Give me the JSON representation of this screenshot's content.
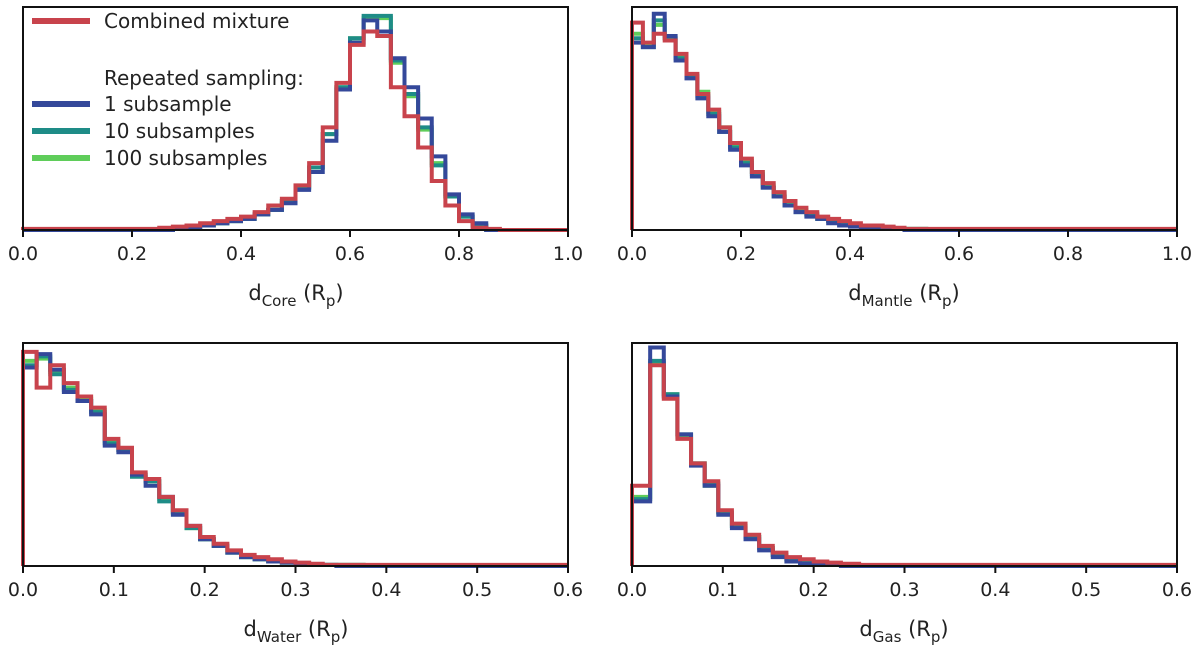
{
  "colors": {
    "combined": "#c8434c",
    "sub1": "#34489a",
    "sub10": "#1e8c87",
    "sub100": "#5fcd5a",
    "axis": "#111111"
  },
  "legend": {
    "items": [
      {
        "label": "Combined mixture",
        "color_key": "combined"
      },
      {
        "label": "Repeated sampling:",
        "color_key": null
      },
      {
        "label": "1 subsample",
        "color_key": "sub1"
      },
      {
        "label": "10 subsamples",
        "color_key": "sub10"
      },
      {
        "label": "100 subsamples",
        "color_key": "sub100"
      }
    ]
  },
  "chart_data": [
    {
      "type": "histogram",
      "panel": "core",
      "xlabel": {
        "main": "d",
        "sub": "Core",
        "unit": " (R",
        "unit_sub": "p",
        "close": ")"
      },
      "xlim": [
        0,
        1.0
      ],
      "xticks": [
        "0.0",
        "0.2",
        "0.4",
        "0.6",
        "0.8",
        "1.0"
      ],
      "xtick_values": [
        0,
        0.2,
        0.4,
        0.6,
        0.8,
        1.0
      ],
      "ylim": [
        0,
        100
      ],
      "yticks_visible": false,
      "bin_edges": [
        0,
        0.025,
        0.05,
        0.075,
        0.1,
        0.125,
        0.15,
        0.175,
        0.2,
        0.225,
        0.25,
        0.275,
        0.3,
        0.325,
        0.35,
        0.375,
        0.4,
        0.425,
        0.45,
        0.475,
        0.5,
        0.525,
        0.55,
        0.575,
        0.6,
        0.625,
        0.65,
        0.675,
        0.7,
        0.725,
        0.75,
        0.775,
        0.8,
        0.825,
        0.85,
        0.875,
        0.9,
        0.925,
        0.95,
        0.975,
        1.0
      ],
      "series": [
        {
          "name": "100 subsamples",
          "color_key": "sub100",
          "values": [
            0,
            0,
            0,
            0,
            0,
            0,
            0,
            0,
            0,
            0,
            0,
            0.5,
            1,
            2,
            3,
            4,
            5,
            7,
            9,
            13,
            19,
            28,
            43,
            64,
            86,
            95,
            95,
            75,
            60,
            45,
            30,
            15,
            6,
            2,
            0,
            0,
            0,
            0,
            0,
            0
          ]
        },
        {
          "name": "10 subsamples",
          "color_key": "sub10",
          "values": [
            0,
            0,
            0,
            0,
            0,
            0,
            0,
            0,
            0,
            0,
            0,
            0.5,
            1,
            2,
            3,
            4,
            5,
            7,
            9,
            13,
            19,
            28,
            43,
            64,
            86,
            96,
            96,
            76,
            61,
            46,
            29,
            15,
            6,
            2,
            0,
            0,
            0,
            0,
            0,
            0
          ]
        },
        {
          "name": "1 subsample",
          "color_key": "sub1",
          "values": [
            0,
            0,
            0,
            0,
            0,
            0,
            0,
            0,
            0,
            0,
            0,
            0.5,
            1,
            2,
            3,
            4,
            5,
            7,
            9,
            12,
            18,
            26,
            40,
            63,
            84,
            94,
            89,
            77,
            64,
            50,
            33,
            16,
            7,
            3,
            0,
            0,
            0,
            0,
            0,
            0
          ]
        },
        {
          "name": "Combined mixture",
          "color_key": "combined",
          "values": [
            0.5,
            0.5,
            0.5,
            0.5,
            0.5,
            0.5,
            0.5,
            0.5,
            0.5,
            0.5,
            1,
            1.5,
            2,
            3,
            4,
            5,
            6,
            8,
            11,
            14,
            20,
            30,
            46,
            66,
            83,
            89,
            87,
            64,
            51,
            37,
            22,
            11,
            4,
            1,
            0.5,
            0,
            0,
            0,
            0,
            0
          ]
        }
      ]
    },
    {
      "type": "histogram",
      "panel": "mantle",
      "xlabel": {
        "main": "d",
        "sub": "Mantle",
        "unit": " (R",
        "unit_sub": "p",
        "close": ")"
      },
      "xlim": [
        0,
        1.0
      ],
      "xticks": [
        "0.0",
        "0.2",
        "0.4",
        "0.6",
        "0.8",
        "1.0"
      ],
      "xtick_values": [
        0,
        0.2,
        0.4,
        0.6,
        0.8,
        1.0
      ],
      "ylim": [
        0,
        100
      ],
      "yticks_visible": false,
      "bin_edges": [
        0,
        0.02,
        0.04,
        0.06,
        0.08,
        0.1,
        0.12,
        0.14,
        0.16,
        0.18,
        0.2,
        0.22,
        0.24,
        0.26,
        0.28,
        0.3,
        0.32,
        0.34,
        0.36,
        0.38,
        0.4,
        0.42,
        0.44,
        0.46,
        0.48,
        0.5,
        0.52,
        0.54,
        0.56,
        0.58,
        0.6,
        0.65,
        0.7,
        0.75,
        0.8,
        0.85,
        0.9,
        0.95,
        1.0
      ],
      "series": [
        {
          "name": "100 subsamples",
          "color_key": "sub100",
          "values": [
            88,
            83,
            92,
            86,
            78,
            69,
            62,
            53,
            46,
            38,
            31,
            26,
            20,
            16,
            12,
            9,
            7,
            5,
            4,
            3,
            2,
            1.5,
            1,
            0.5,
            0.5,
            0.5,
            0.5,
            0,
            0,
            0,
            0,
            0,
            0,
            0,
            0,
            0,
            0,
            0
          ]
        },
        {
          "name": "10 subsamples",
          "color_key": "sub10",
          "values": [
            86,
            82,
            94,
            86,
            77,
            69,
            60,
            52,
            44,
            37,
            30,
            25,
            19,
            15,
            11,
            8,
            7,
            5,
            4,
            3,
            2,
            1.5,
            1,
            0.5,
            0.5,
            0.5,
            0.5,
            0,
            0,
            0,
            0,
            0,
            0,
            0,
            0,
            0,
            0,
            0
          ]
        },
        {
          "name": "1 subsample",
          "color_key": "sub1",
          "values": [
            84,
            82,
            97,
            87,
            76,
            68,
            59,
            51,
            44,
            36,
            29,
            24,
            19,
            15,
            11,
            8,
            6,
            5,
            3,
            2,
            1.5,
            1,
            0.5,
            0.5,
            0.5,
            0,
            0,
            0,
            0,
            0,
            0,
            0,
            0,
            0,
            0,
            0,
            0,
            0
          ]
        },
        {
          "name": "Combined mixture",
          "color_key": "combined",
          "values": [
            93,
            84,
            88,
            85,
            79,
            70,
            61,
            54,
            46,
            39,
            32,
            26,
            21,
            17,
            13,
            10,
            8,
            6,
            5,
            4,
            3,
            2,
            2,
            1.5,
            1,
            0.5,
            0.5,
            0.5,
            0.5,
            0.5,
            0.5,
            0.5,
            0.5,
            0.5,
            0.5,
            0.5,
            0.5,
            0.5
          ]
        }
      ]
    },
    {
      "type": "histogram",
      "panel": "water",
      "xlabel": {
        "main": "d",
        "sub": "Water",
        "unit": " (R",
        "unit_sub": "p",
        "close": ")"
      },
      "xlim": [
        0,
        0.6
      ],
      "xticks": [
        "0.0",
        "0.1",
        "0.2",
        "0.3",
        "0.4",
        "0.5",
        "0.6"
      ],
      "xtick_values": [
        0,
        0.1,
        0.2,
        0.3,
        0.4,
        0.5,
        0.6
      ],
      "ylim": [
        0,
        100
      ],
      "yticks_visible": false,
      "bin_edges": [
        0,
        0.015,
        0.03,
        0.045,
        0.06,
        0.075,
        0.09,
        0.105,
        0.12,
        0.135,
        0.15,
        0.165,
        0.18,
        0.195,
        0.21,
        0.225,
        0.24,
        0.255,
        0.27,
        0.285,
        0.3,
        0.315,
        0.33,
        0.345,
        0.36,
        0.375,
        0.39,
        0.405,
        0.42,
        0.45,
        0.48,
        0.51,
        0.54,
        0.57,
        0.6
      ],
      "series": [
        {
          "name": "100 subsamples",
          "color_key": "sub100",
          "values": [
            92,
            93,
            87,
            80,
            75,
            70,
            56,
            52,
            41,
            38,
            30,
            24,
            17,
            12,
            9,
            6,
            4,
            3,
            2,
            1.5,
            1,
            0.5,
            0.5,
            0.5,
            0.5,
            0,
            0,
            0,
            0,
            0,
            0,
            0,
            0,
            0
          ]
        },
        {
          "name": "10 subsamples",
          "color_key": "sub10",
          "values": [
            90,
            94,
            86,
            79,
            74,
            69,
            55,
            52,
            40,
            38,
            29,
            24,
            17,
            12,
            9,
            6,
            4,
            3,
            2,
            1.5,
            1,
            0.5,
            0.5,
            0.5,
            0.5,
            0,
            0,
            0,
            0,
            0,
            0,
            0,
            0,
            0
          ]
        },
        {
          "name": "1 subsample",
          "color_key": "sub1",
          "values": [
            89,
            95,
            88,
            78,
            74,
            68,
            54,
            51,
            41,
            36,
            31,
            23,
            18,
            12,
            9,
            6,
            4,
            3,
            2,
            1.5,
            1,
            0.5,
            0.5,
            0,
            0,
            0,
            0,
            0,
            0,
            0,
            0,
            0,
            0,
            0
          ]
        },
        {
          "name": "Combined mixture",
          "color_key": "combined",
          "values": [
            96,
            80,
            90,
            82,
            76,
            71,
            57,
            53,
            42,
            39,
            31,
            25,
            18,
            13,
            10,
            7,
            5,
            4,
            3,
            2,
            1.5,
            1,
            0.5,
            0.5,
            0.5,
            0.5,
            0.5,
            0.5,
            0.5,
            0.5,
            0.5,
            0.5,
            0.5,
            0.5
          ]
        }
      ]
    },
    {
      "type": "histogram",
      "panel": "gas",
      "xlabel": {
        "main": "d",
        "sub": "Gas",
        "unit": " (R",
        "unit_sub": "p",
        "close": ")"
      },
      "xlim": [
        0,
        0.6
      ],
      "xticks": [
        "0.0",
        "0.1",
        "0.2",
        "0.3",
        "0.4",
        "0.5",
        "0.6"
      ],
      "xtick_values": [
        0,
        0.1,
        0.2,
        0.3,
        0.4,
        0.5,
        0.6
      ],
      "ylim": [
        0,
        100
      ],
      "yticks_visible": false,
      "bin_edges": [
        0,
        0.02,
        0.035,
        0.05,
        0.065,
        0.08,
        0.095,
        0.11,
        0.125,
        0.14,
        0.155,
        0.17,
        0.185,
        0.2,
        0.215,
        0.23,
        0.25,
        0.3,
        0.35,
        0.4,
        0.45,
        0.5,
        0.55,
        0.6
      ],
      "series": [
        {
          "name": "100 subsamples",
          "color_key": "sub100",
          "values": [
            31,
            91,
            77,
            58,
            46,
            36,
            24,
            18,
            13,
            8,
            5,
            3,
            2,
            1,
            0.5,
            0.5,
            0,
            0,
            0,
            0,
            0,
            0,
            0
          ]
        },
        {
          "name": "10 subsamples",
          "color_key": "sub10",
          "values": [
            30,
            92,
            77,
            59,
            46,
            37,
            24,
            18,
            13,
            8,
            5,
            3,
            2,
            1,
            0.5,
            0.5,
            0,
            0,
            0,
            0,
            0,
            0,
            0
          ]
        },
        {
          "name": "1 subsample",
          "color_key": "sub1",
          "values": [
            29,
            98,
            76,
            59,
            45,
            36,
            23,
            17,
            12,
            7,
            4,
            2,
            1,
            0.5,
            0.5,
            0,
            0,
            0,
            0,
            0,
            0,
            0,
            0
          ]
        },
        {
          "name": "Combined mixture",
          "color_key": "combined",
          "values": [
            36,
            90,
            75,
            57,
            46,
            38,
            25,
            19,
            14,
            9,
            6,
            4,
            3,
            2,
            1.5,
            1,
            0.5,
            0.5,
            0.5,
            0.5,
            0.5,
            0.5,
            0.5
          ]
        }
      ]
    }
  ]
}
